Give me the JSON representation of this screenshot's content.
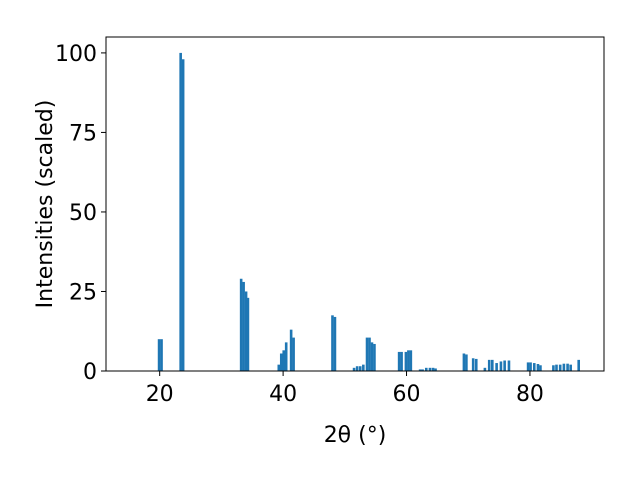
{
  "chart_data": {
    "type": "bar",
    "x_label": "2θ (°)",
    "y_label": "Intensities (scaled)",
    "color": "#1f77b4",
    "x": [
      19.9,
      20.3,
      23.4,
      23.8,
      33.2,
      33.6,
      34.0,
      34.3,
      39.3,
      39.7,
      40.1,
      40.5,
      41.3,
      41.7,
      48.0,
      48.4,
      51.5,
      52.0,
      52.5,
      53.0,
      53.6,
      54.0,
      54.4,
      54.8,
      58.8,
      59.2,
      59.9,
      60.3,
      60.7,
      62.2,
      62.6,
      63.2,
      63.8,
      64.3,
      64.7,
      69.3,
      69.7,
      70.8,
      71.3,
      72.7,
      73.4,
      73.9,
      74.6,
      75.3,
      75.9,
      76.6,
      79.7,
      80.1,
      80.7,
      81.3,
      81.7,
      83.8,
      84.3,
      84.9,
      85.5,
      86.1,
      86.6,
      87.9
    ],
    "values": [
      10,
      10,
      100,
      98,
      29,
      28,
      25,
      23,
      2,
      5.5,
      6.5,
      9,
      13,
      10.5,
      17.5,
      17,
      1,
      1.5,
      1.5,
      2,
      10.5,
      10.5,
      9,
      8.5,
      6,
      6,
      6,
      6.5,
      6.5,
      0.5,
      0.5,
      1,
      1,
      1,
      0.8,
      5.5,
      5.2,
      4,
      3.8,
      1,
      3.5,
      3.5,
      2.5,
      3,
      3.3,
      3.3,
      2.7,
      2.7,
      2.5,
      2.2,
      1.8,
      1.8,
      2,
      2,
      2.3,
      2.3,
      2,
      3.5
    ],
    "xlim": [
      11.3,
      92
    ],
    "ylim": [
      0,
      105
    ],
    "xticks": [
      20,
      40,
      60,
      80
    ],
    "yticks": [
      0,
      25,
      50,
      75,
      100
    ]
  }
}
